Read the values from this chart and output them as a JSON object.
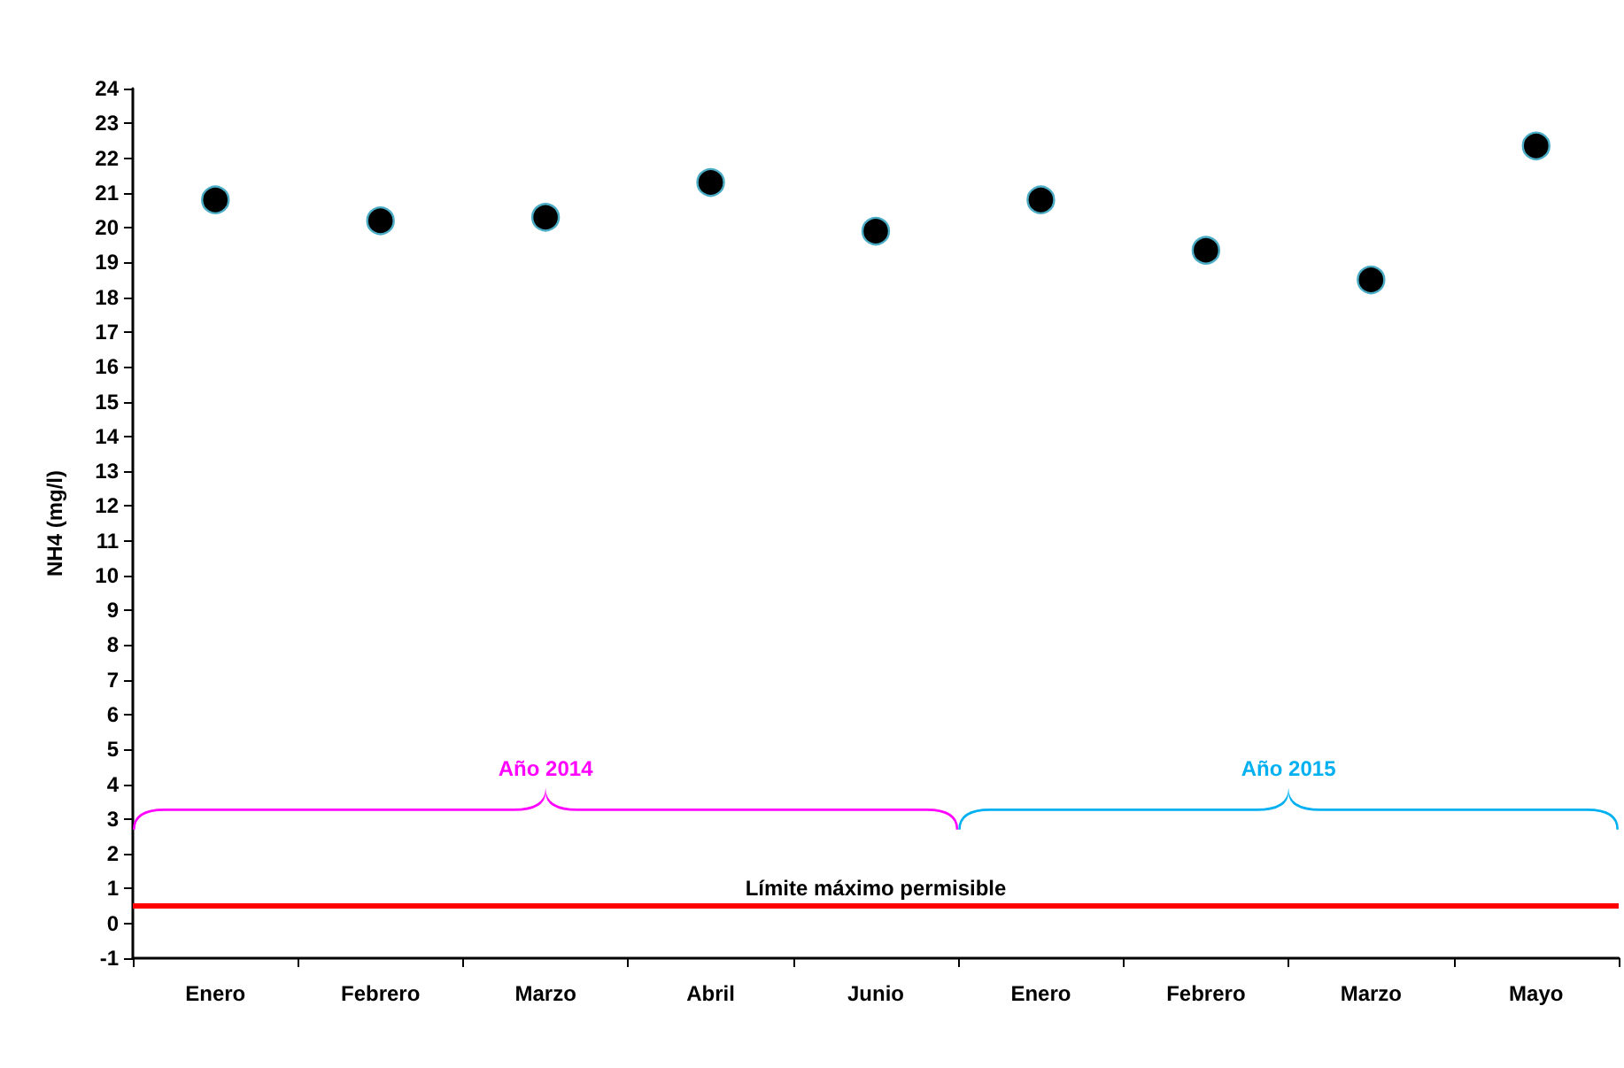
{
  "chart_data": {
    "type": "scatter",
    "ylabel": "NH4 (mg/l)",
    "categories": [
      "Enero",
      "Febrero",
      "Marzo",
      "Abril",
      "Junio",
      "Enero",
      "Febrero",
      "Marzo",
      "Mayo"
    ],
    "values": [
      20.8,
      20.2,
      20.3,
      21.3,
      19.9,
      20.8,
      19.35,
      18.5,
      22.35
    ],
    "color": "#000000",
    "marker": "circle",
    "ylim": [
      -1,
      24
    ],
    "yticks": [
      -1,
      0,
      1,
      2,
      3,
      4,
      5,
      6,
      7,
      8,
      9,
      10,
      11,
      12,
      13,
      14,
      15,
      16,
      17,
      18,
      19,
      20,
      21,
      22,
      23,
      24
    ],
    "grid": false,
    "ref_lines": [
      {
        "axis": "y",
        "value": 0.5,
        "label": "Límite máximo permisible",
        "color": "#ff0000"
      }
    ],
    "annotations": [
      "Año 2014",
      "Año 2015"
    ]
  }
}
